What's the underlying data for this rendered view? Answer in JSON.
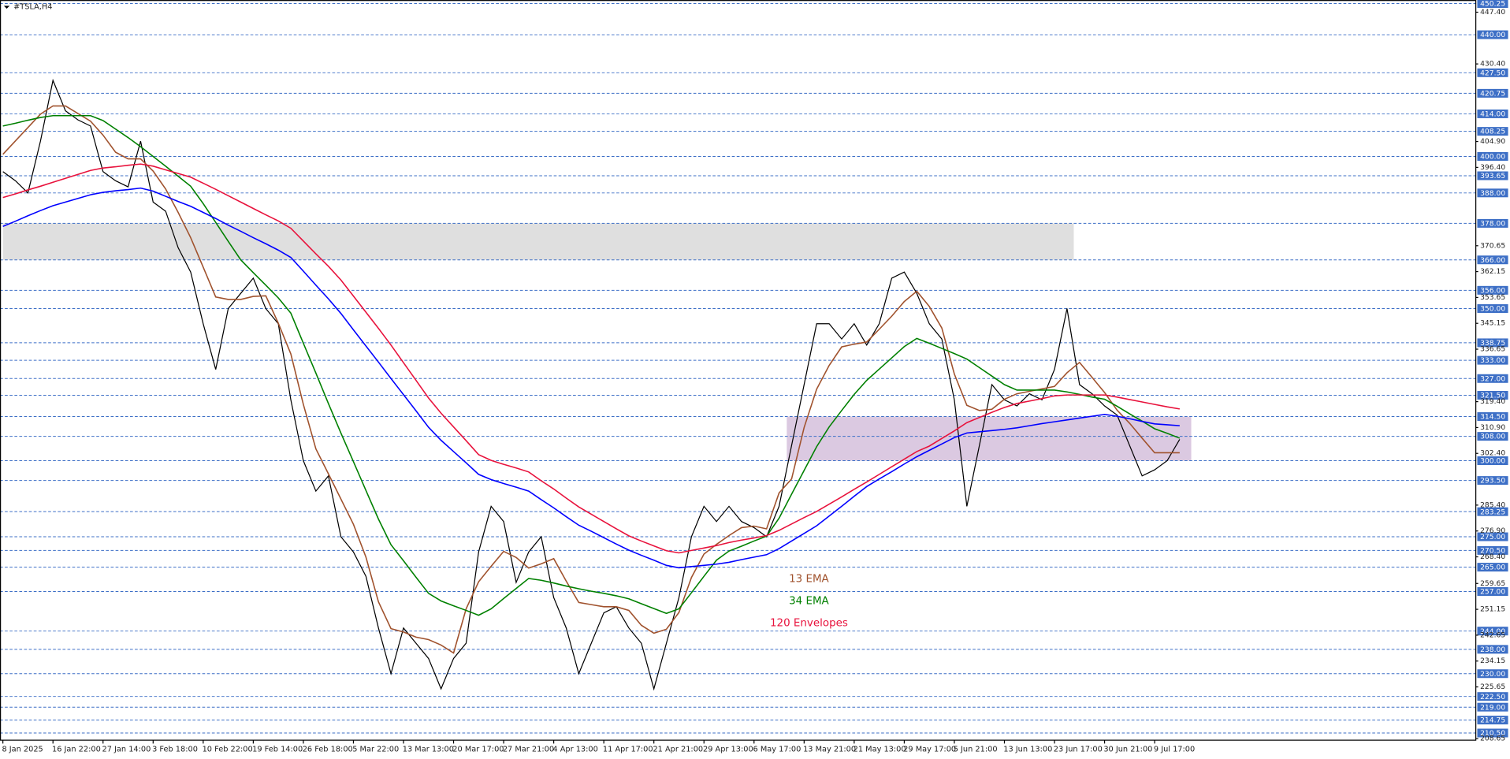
{
  "chart_data": {
    "type": "line",
    "title": "#TSLA,H4",
    "categories": [
      "8 Jan 2025",
      null,
      null,
      null,
      "16 Jan 22:00",
      null,
      null,
      null,
      "27 Jan 14:00",
      null,
      null,
      null,
      "3 Feb 18:00",
      null,
      null,
      null,
      "10 Feb 22:00",
      null,
      null,
      null,
      "19 Feb 14:00",
      null,
      null,
      null,
      "26 Feb 18:00",
      null,
      null,
      null,
      "5 Mar 22:00",
      null,
      null,
      null,
      "13 Mar 13:00",
      null,
      null,
      null,
      "20 Mar 17:00",
      null,
      null,
      null,
      "27 Mar 21:00",
      null,
      null,
      null,
      "4 Apr 13:00",
      null,
      null,
      null,
      "11 Apr 17:00",
      null,
      null,
      null,
      "21 Apr 21:00",
      null,
      null,
      null,
      "29 Apr 13:00",
      null,
      null,
      null,
      "6 May 17:00",
      null,
      null,
      null,
      "13 May 21:00",
      null,
      null,
      null,
      "21 May 13:00",
      null,
      null,
      null,
      "29 May 17:00",
      null,
      null,
      null,
      "5 Jun 21:00",
      null,
      null,
      null,
      "13 Jun 13:00",
      null,
      null,
      null,
      "23 Jun 17:00",
      null,
      null,
      null,
      "30 Jun 21:00",
      null,
      null,
      null,
      "9 Jul 17:00",
      null,
      null
    ],
    "series": [
      {
        "color": "#000000",
        "values": [
          395,
          392,
          388,
          405,
          425,
          415,
          412,
          410,
          395,
          392,
          390,
          405,
          385,
          382,
          370,
          362,
          345,
          330,
          350,
          355,
          360,
          350,
          345,
          320,
          300,
          290,
          295,
          275,
          270,
          262,
          245,
          230,
          245,
          240,
          235,
          225,
          235,
          240,
          270,
          285,
          280,
          260,
          270,
          275,
          255,
          245,
          230,
          240,
          250,
          252,
          245,
          240,
          225,
          240,
          255,
          275,
          285,
          280,
          285,
          280,
          278,
          275,
          285,
          305,
          325,
          345,
          345,
          340,
          345,
          338,
          345,
          360,
          362,
          355,
          345,
          340,
          320,
          285,
          305,
          325,
          320,
          318,
          322,
          320,
          330,
          350,
          325,
          322,
          318,
          315,
          305,
          295,
          297,
          300,
          307
        ]
      },
      {
        "name": "13 EMA",
        "color": "#a0522d",
        "values": [
          400.7,
          405.1,
          409.5,
          413.9,
          416.6,
          416.6,
          414.1,
          411.6,
          407.0,
          401.4,
          399.2,
          399.2,
          395.2,
          389.3,
          381.6,
          373.3,
          363.6,
          353.8,
          353.0,
          353.0,
          354.0,
          354.2,
          345.2,
          335.1,
          318.5,
          303.9,
          295.7,
          287.4,
          279.1,
          268.3,
          253.6,
          244.8,
          243.7,
          242.0,
          241.2,
          239.4,
          236.8,
          251.3,
          260.2,
          265.3,
          270.2,
          268.2,
          264.7,
          266.1,
          267.8,
          260.4,
          253.4,
          252.7,
          252.0,
          252.0,
          250.8,
          245.9,
          243.3,
          244.6,
          250.1,
          261.6,
          269.3,
          272.5,
          275.4,
          278.0,
          278.5,
          277.6,
          289.4,
          294.0,
          310.9,
          323.5,
          331.3,
          337.4,
          338.3,
          339.0,
          343.2,
          347.5,
          352.3,
          355.7,
          350.7,
          343.6,
          328.5,
          318.2,
          316.5,
          316.9,
          320.2,
          322.0,
          322.8,
          323.6,
          324.4,
          328.9,
          332.3,
          327.4,
          322.4,
          316.6,
          312.3,
          307.4,
          302.6,
          302.6,
          302.6
        ]
      },
      {
        "name": "34 EMA",
        "color": "#008000",
        "values": [
          410.0,
          410.9,
          411.9,
          412.8,
          413.4,
          413.4,
          413.4,
          413.4,
          411.8,
          409.0,
          406.2,
          403.2,
          400.0,
          396.8,
          393.5,
          390.2,
          384.5,
          378.3,
          372.1,
          366.0,
          361.8,
          357.7,
          353.5,
          348.5,
          338.6,
          328.8,
          318.8,
          309.1,
          299.7,
          290.2,
          280.8,
          272.4,
          267.1,
          261.7,
          256.4,
          253.9,
          252.3,
          250.8,
          249.2,
          251.3,
          254.7,
          258.0,
          261.3,
          260.7,
          259.8,
          258.8,
          257.9,
          257.1,
          256.4,
          255.6,
          254.6,
          253.0,
          251.4,
          249.8,
          251.3,
          256.6,
          262.0,
          267.3,
          270.3,
          271.9,
          273.6,
          275.2,
          281.1,
          289.0,
          296.8,
          304.6,
          311.1,
          316.5,
          321.8,
          326.4,
          330.1,
          333.8,
          337.5,
          340.2,
          338.6,
          336.9,
          335.2,
          333.4,
          330.6,
          327.8,
          325.0,
          323.2,
          323.2,
          323.2,
          323.2,
          322.6,
          321.8,
          320.9,
          320.2,
          317.9,
          315.4,
          313.0,
          310.5,
          309.0,
          307.4
        ]
      },
      {
        "name": "120 Envelopes",
        "color": "#e8123c",
        "values": [
          386.5,
          387.7,
          389.0,
          390.2,
          391.5,
          392.8,
          394.1,
          395.4,
          396.2,
          396.6,
          397.1,
          397.5,
          396.8,
          395.6,
          394.4,
          393.2,
          391.2,
          389.2,
          387.1,
          385.0,
          382.9,
          380.8,
          378.8,
          376.4,
          372.2,
          368.0,
          363.9,
          359.4,
          354.1,
          348.8,
          343.5,
          338.0,
          332.2,
          326.4,
          320.6,
          315.6,
          311.1,
          306.6,
          302.0,
          300.1,
          298.8,
          297.6,
          296.3,
          293.4,
          290.7,
          287.7,
          284.8,
          282.4,
          280.0,
          277.6,
          275.3,
          273.6,
          272.0,
          270.4,
          269.7,
          270.5,
          271.3,
          272.1,
          273.1,
          273.9,
          274.6,
          275.4,
          277.1,
          279.2,
          281.3,
          283.3,
          285.7,
          288.1,
          290.6,
          293.0,
          295.5,
          298.0,
          300.5,
          303.0,
          304.8,
          307.3,
          309.8,
          312.5,
          314.2,
          315.9,
          317.5,
          318.8,
          319.6,
          320.4,
          321.3,
          321.6,
          321.6,
          321.6,
          321.6,
          320.9,
          320.1,
          319.3,
          318.5,
          317.7,
          317.0
        ]
      },
      {
        "color": "#0000ff",
        "values": [
          377.0,
          378.7,
          380.5,
          382.2,
          383.8,
          385.0,
          386.2,
          387.4,
          388.2,
          388.7,
          389.1,
          389.6,
          388.6,
          386.9,
          385.2,
          383.6,
          381.6,
          379.6,
          377.4,
          375.4,
          373.3,
          371.3,
          369.2,
          366.8,
          362.3,
          357.7,
          353.2,
          348.4,
          343.0,
          337.7,
          332.4,
          327.0,
          321.7,
          316.4,
          311.0,
          306.7,
          303.0,
          299.3,
          295.5,
          293.8,
          292.5,
          291.3,
          290.0,
          287.2,
          284.5,
          281.6,
          278.8,
          276.8,
          274.7,
          272.6,
          270.6,
          268.9,
          267.3,
          265.6,
          264.8,
          265.2,
          265.6,
          266.0,
          266.6,
          267.5,
          268.3,
          269.1,
          271.1,
          273.6,
          276.1,
          278.6,
          281.8,
          285.0,
          288.3,
          291.5,
          294.0,
          296.4,
          298.9,
          301.3,
          303.4,
          305.5,
          307.6,
          309.1,
          309.5,
          309.9,
          310.3,
          310.8,
          311.5,
          312.2,
          312.8,
          313.4,
          314.0,
          314.6,
          315.2,
          314.6,
          313.8,
          312.9,
          312.1,
          311.8,
          311.5
        ]
      }
    ],
    "zones": [
      {
        "ylim": [
          366,
          378
        ],
        "color": "#d9d9d9"
      },
      {
        "ylim": [
          300,
          314.5
        ],
        "color": "#d5bfdc"
      }
    ],
    "ylim": [
      208.3,
      451.4
    ],
    "levels": [
      {
        "value": 450.25,
        "label": "450.25"
      },
      {
        "value": 440,
        "label": "440.00"
      },
      {
        "value": 427.5,
        "label": "427.50"
      },
      {
        "value": 420.75,
        "label": "420.75"
      },
      {
        "value": 414,
        "label": "414.00"
      },
      {
        "value": 408.25,
        "label": "408.25"
      },
      {
        "value": 400,
        "label": "400.00"
      },
      {
        "value": 393.65,
        "label": "393.65"
      },
      {
        "value": 388,
        "label": "388.00"
      },
      {
        "value": 378,
        "label": "378.00"
      },
      {
        "value": 366,
        "label": "366.00"
      },
      {
        "value": 356,
        "label": "356.00"
      },
      {
        "value": 350,
        "label": "350.00"
      },
      {
        "value": 338.75,
        "label": "338.75"
      },
      {
        "value": 333,
        "label": "333.00"
      },
      {
        "value": 327,
        "label": "327.00"
      },
      {
        "value": 321.5,
        "label": "321.50"
      },
      {
        "value": 314.5,
        "label": "314.50"
      },
      {
        "value": 308,
        "label": "308.00"
      },
      {
        "value": 300,
        "label": "300.00"
      },
      {
        "value": 293.5,
        "label": "293.50"
      },
      {
        "value": 283.25,
        "label": "283.25"
      },
      {
        "value": 275,
        "label": "275.00"
      },
      {
        "value": 270.5,
        "label": "270.50"
      },
      {
        "value": 265,
        "label": "265.00"
      },
      {
        "value": 257,
        "label": "257.00"
      },
      {
        "value": 244,
        "label": "244.00"
      },
      {
        "value": 238,
        "label": "238.00"
      },
      {
        "value": 230,
        "label": "230.00"
      },
      {
        "value": 222.5,
        "label": "222.50"
      },
      {
        "value": 219,
        "label": "219.00"
      },
      {
        "value": 214.75,
        "label": "214.75"
      },
      {
        "value": 210.5,
        "label": "210.50"
      }
    ],
    "level_color": "#3d6fc6",
    "yticks": [
      {
        "value": 447.4,
        "label": "447.40"
      },
      {
        "value": 430.4,
        "label": "430.40"
      },
      {
        "value": 404.9,
        "label": "404.90"
      },
      {
        "value": 396.4,
        "label": "396.40"
      },
      {
        "value": 370.65,
        "label": "370.65"
      },
      {
        "value": 362.15,
        "label": "362.15"
      },
      {
        "value": 353.65,
        "label": "353.65"
      },
      {
        "value": 345.15,
        "label": "345.15"
      },
      {
        "value": 336.65,
        "label": "336.65"
      },
      {
        "value": 319.4,
        "label": "319.40"
      },
      {
        "value": 310.9,
        "label": "310.90"
      },
      {
        "value": 302.4,
        "label": "302.40"
      },
      {
        "value": 285.4,
        "label": "285.40"
      },
      {
        "value": 276.9,
        "label": "276.90"
      },
      {
        "value": 268.4,
        "label": "268.40"
      },
      {
        "value": 259.65,
        "label": "259.65"
      },
      {
        "value": 251.15,
        "label": "251.15"
      },
      {
        "value": 242.65,
        "label": "242.65"
      },
      {
        "value": 234.15,
        "label": "234.15"
      },
      {
        "value": 225.65,
        "label": "225.65"
      },
      {
        "value": 208.65,
        "label": "208.65"
      }
    ]
  }
}
